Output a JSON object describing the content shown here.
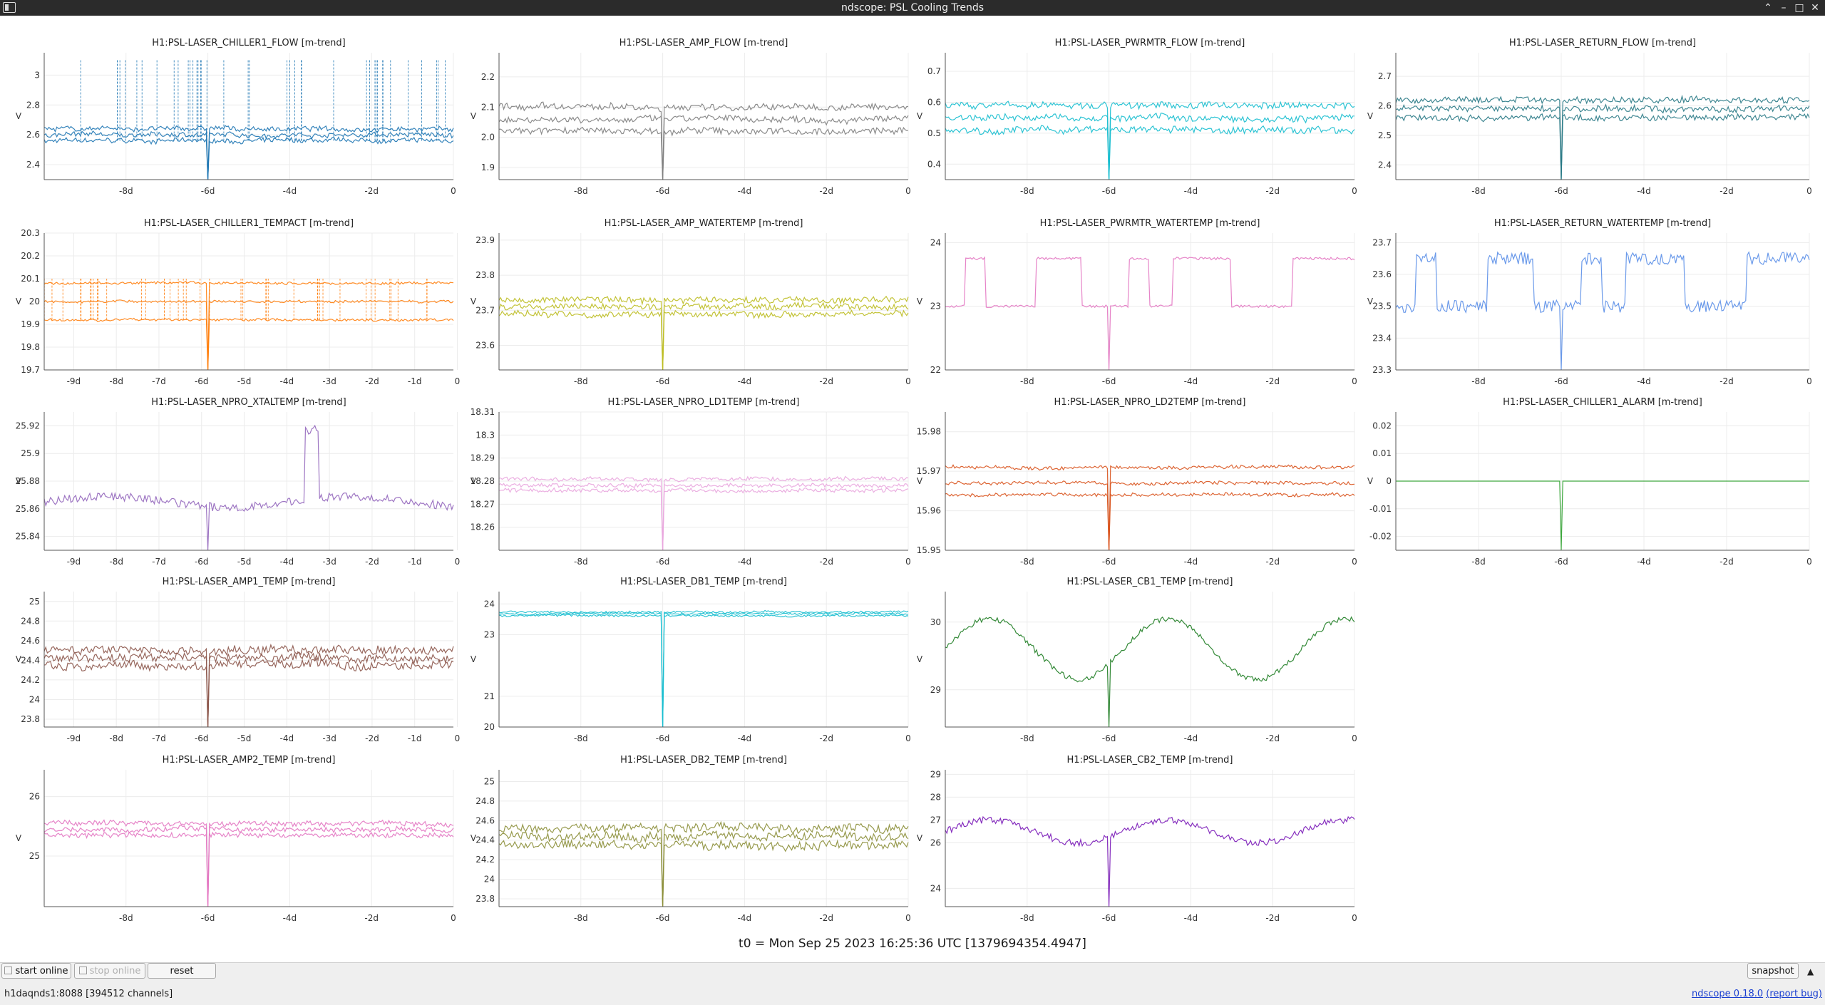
{
  "window": {
    "title": "ndscope: PSL Cooling Trends"
  },
  "plots": [
    {
      "title": "H1:PSL-LASER_CHILLER1_FLOW [m-trend]",
      "ylabel": "V",
      "color": "#1f77b4",
      "yticks": [
        "2.4",
        "2.6",
        "2.8",
        "3"
      ],
      "ylim": [
        2.3,
        3.15
      ],
      "xticks": [
        "-8d",
        "-6d",
        "-4d",
        "-2d",
        "0"
      ],
      "style": "bandspikes",
      "base": 2.6,
      "bands": [
        2.56,
        2.6,
        2.64
      ],
      "noise": 0.015,
      "spikeTo": 3.1
    },
    {
      "title": "H1:PSL-LASER_AMP_FLOW [m-trend]",
      "ylabel": "V",
      "color": "#7f7f7f",
      "yticks": [
        "1.9",
        "2.0",
        "2.1",
        "2.2"
      ],
      "ylim": [
        1.86,
        2.28
      ],
      "xticks": [
        "-8d",
        "-6d",
        "-4d",
        "-2d",
        "0"
      ],
      "style": "bands",
      "bands": [
        2.02,
        2.06,
        2.1
      ],
      "noise": 0.01
    },
    {
      "title": "H1:PSL-LASER_PWRMTR_FLOW [m-trend]",
      "ylabel": "V",
      "color": "#17becf",
      "yticks": [
        "0.4",
        "0.5",
        "0.6",
        "0.7"
      ],
      "ylim": [
        0.35,
        0.76
      ],
      "xticks": [
        "-8d",
        "-6d",
        "-4d",
        "-2d",
        "0"
      ],
      "style": "bands",
      "bands": [
        0.51,
        0.55,
        0.59
      ],
      "noise": 0.01
    },
    {
      "title": "H1:PSL-LASER_RETURN_FLOW [m-trend]",
      "ylabel": "V",
      "color": "#2a7a86",
      "yticks": [
        "2.4",
        "2.5",
        "2.6",
        "2.7"
      ],
      "ylim": [
        2.35,
        2.78
      ],
      "xticks": [
        "-8d",
        "-6d",
        "-4d",
        "-2d",
        "0"
      ],
      "style": "bands",
      "bands": [
        2.56,
        2.59,
        2.62
      ],
      "noise": 0.01
    },
    {
      "title": "H1:PSL-LASER_CHILLER1_TEMPACT [m-trend]",
      "ylabel": "V",
      "color": "#ff7f0e",
      "yticks": [
        "19.7",
        "19.8",
        "19.9",
        "20",
        "20.1",
        "20.2",
        "20.3"
      ],
      "ylim": [
        19.7,
        20.3
      ],
      "xticks": [
        "-9d",
        "-8d",
        "-7d",
        "-6d",
        "-5d",
        "-4d",
        "-3d",
        "-2d",
        "-1d",
        "0"
      ],
      "style": "bandspikes",
      "base": 20.0,
      "bands": [
        19.92,
        20.0,
        20.08
      ],
      "noise": 0.005,
      "spikeTo": 20.1
    },
    {
      "title": "H1:PSL-LASER_AMP_WATERTEMP [m-trend]",
      "ylabel": "V",
      "color": "#bcbd22",
      "yticks": [
        "23.6",
        "23.7",
        "23.8",
        "23.9"
      ],
      "ylim": [
        23.53,
        23.92
      ],
      "xticks": [
        "-8d",
        "-6d",
        "-4d",
        "-2d",
        "0"
      ],
      "style": "bands",
      "bands": [
        23.69,
        23.71,
        23.73
      ],
      "noise": 0.008
    },
    {
      "title": "H1:PSL-LASER_PWRMTR_WATERTEMP [m-trend]",
      "ylabel": "V",
      "color": "#e377c2",
      "yticks": [
        "22",
        "23",
        "24"
      ],
      "ylim": [
        22.0,
        24.15
      ],
      "xticks": [
        "-8d",
        "-6d",
        "-4d",
        "-2d",
        "0"
      ],
      "style": "steps",
      "base": 23.0,
      "high": 23.75,
      "noise": 0.02
    },
    {
      "title": "H1:PSL-LASER_RETURN_WATERTEMP [m-trend]",
      "ylabel": "V",
      "color": "#5b8fe8",
      "yticks": [
        "23.3",
        "23.4",
        "23.5",
        "23.6",
        "23.7"
      ],
      "ylim": [
        23.3,
        23.73
      ],
      "xticks": [
        "-8d",
        "-6d",
        "-4d",
        "-2d",
        "0"
      ],
      "style": "steps",
      "base": 23.5,
      "high": 23.65,
      "noise": 0.02
    },
    {
      "title": "H1:PSL-LASER_NPRO_XTALTEMP [m-trend]",
      "ylabel": "V",
      "color": "#9467bd",
      "yticks": [
        "25.84",
        "25.86",
        "25.88",
        "25.9",
        "25.92"
      ],
      "ylim": [
        25.83,
        25.93
      ],
      "xticks": [
        "-9d",
        "-8d",
        "-7d",
        "-6d",
        "-5d",
        "-4d",
        "-3d",
        "-2d",
        "-1d",
        "0"
      ],
      "style": "wander",
      "base": 25.865,
      "noise": 0.003
    },
    {
      "title": "H1:PSL-LASER_NPRO_LD1TEMP [m-trend]",
      "ylabel": "V",
      "color": "#e9a6de",
      "yticks": [
        "18.26",
        "18.27",
        "18.28",
        "18.29",
        "18.3",
        "18.31"
      ],
      "ylim": [
        18.25,
        18.31
      ],
      "xticks": [
        "-8d",
        "-6d",
        "-4d",
        "-2d",
        "0"
      ],
      "style": "bands",
      "bands": [
        18.276,
        18.278,
        18.281
      ],
      "noise": 0.0008
    },
    {
      "title": "H1:PSL-LASER_NPRO_LD2TEMP [m-trend]",
      "ylabel": "V",
      "color": "#d9541e",
      "yticks": [
        "15.95",
        "15.96",
        "15.97",
        "15.98"
      ],
      "ylim": [
        15.95,
        15.985
      ],
      "xticks": [
        "-8d",
        "-6d",
        "-4d",
        "-2d",
        "0"
      ],
      "style": "bands",
      "bands": [
        15.964,
        15.967,
        15.971
      ],
      "noise": 0.0004
    },
    {
      "title": "H1:PSL-LASER_CHILLER1_ALARM [m-trend]",
      "ylabel": "V",
      "color": "#2ca02c",
      "yticks": [
        "-0.02",
        "-0.01",
        "0",
        "0.01",
        "0.02"
      ],
      "ylim": [
        -0.025,
        0.025
      ],
      "xticks": [
        "-8d",
        "-6d",
        "-4d",
        "-2d",
        "0"
      ],
      "style": "flat",
      "base": 0
    },
    {
      "title": "H1:PSL-LASER_AMP1_TEMP [m-trend]",
      "ylabel": "V",
      "color": "#8c564b",
      "yticks": [
        "23.8",
        "24",
        "24.2",
        "24.4",
        "24.6",
        "24.8",
        "25"
      ],
      "ylim": [
        23.72,
        25.1
      ],
      "xticks": [
        "-9d",
        "-8d",
        "-7d",
        "-6d",
        "-5d",
        "-4d",
        "-3d",
        "-2d",
        "-1d",
        "0"
      ],
      "style": "bands",
      "bands": [
        24.35,
        24.42,
        24.5
      ],
      "noise": 0.04
    },
    {
      "title": "H1:PSL-LASER_DB1_TEMP [m-trend]",
      "ylabel": "V",
      "color": "#17becf",
      "yticks": [
        "20",
        "21",
        "23",
        "24"
      ],
      "ylim": [
        20.0,
        24.4
      ],
      "xticks": [
        "-8d",
        "-6d",
        "-4d",
        "-2d",
        "0"
      ],
      "style": "bands",
      "bands": [
        23.62,
        23.68,
        23.74
      ],
      "noise": 0.03
    },
    {
      "title": "H1:PSL-LASER_CB1_TEMP [m-trend]",
      "ylabel": "V",
      "color": "#1e7d22",
      "yticks": [
        "29",
        "30"
      ],
      "ylim": [
        28.45,
        30.45
      ],
      "xticks": [
        "-8d",
        "-6d",
        "-4d",
        "-2d",
        "0"
      ],
      "style": "sine",
      "base": 29.6,
      "amp": 0.45,
      "noise": 0.04
    },
    {
      "title": "H1:PSL-LASER_AMP2_TEMP [m-trend]",
      "ylabel": "V",
      "color": "#e377c2",
      "yticks": [
        "25",
        "26"
      ],
      "ylim": [
        24.15,
        26.45
      ],
      "xticks": [
        "-8d",
        "-6d",
        "-4d",
        "-2d",
        "0"
      ],
      "style": "bands",
      "bands": [
        25.35,
        25.45,
        25.55
      ],
      "noise": 0.04
    },
    {
      "title": "H1:PSL-LASER_DB2_TEMP [m-trend]",
      "ylabel": "V",
      "color": "#8c8f3a",
      "yticks": [
        "23.8",
        "24",
        "24.2",
        "24.4",
        "24.6",
        "24.8",
        "25"
      ],
      "ylim": [
        23.72,
        25.12
      ],
      "xticks": [
        "-8d",
        "-6d",
        "-4d",
        "-2d",
        "0"
      ],
      "style": "bands",
      "bands": [
        24.36,
        24.44,
        24.52
      ],
      "noise": 0.04
    },
    {
      "title": "H1:PSL-LASER_CB2_TEMP [m-trend]",
      "ylabel": "V",
      "color": "#7a1ab8",
      "yticks": [
        "24",
        "26",
        "27",
        "28",
        "29"
      ],
      "ylim": [
        23.2,
        29.2
      ],
      "xticks": [
        "-8d",
        "-6d",
        "-4d",
        "-2d",
        "0"
      ],
      "style": "sine",
      "base": 26.5,
      "amp": 0.5,
      "noise": 0.15
    }
  ],
  "t0_label": "t0 = Mon Sep 25 2023 16:25:36 UTC [1379694354.4947]",
  "buttons": {
    "start_online": "start online",
    "stop_online": "stop online",
    "reset": "reset",
    "snapshot": "snapshot"
  },
  "status": "h1daqnds1:8088  [394512 channels]",
  "version": {
    "text": "ndscope 0.18.0",
    "report": "(report bug)"
  }
}
